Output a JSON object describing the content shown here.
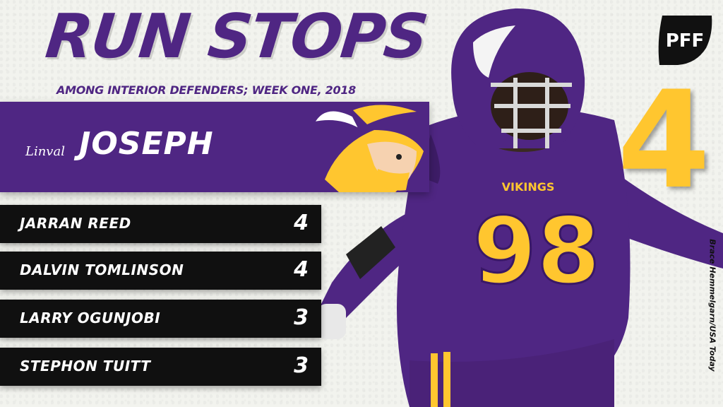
{
  "graphic": {
    "title": "RUN STOPS",
    "subtitle": "AMONG INTERIOR DEFENDERS; WEEK ONE, 2018"
  },
  "featured_player": {
    "first_name": "Linval",
    "last_name": "JOSEPH",
    "value": "4",
    "team_logo_icon": "vikings-logo-icon",
    "jersey_team": "VIKINGS",
    "jersey_number": "98"
  },
  "rankings": [
    {
      "name": "JARRAN REED",
      "value": "4"
    },
    {
      "name": "DALVIN TOMLINSON",
      "value": "4"
    },
    {
      "name": "LARRY OGUNJOBI",
      "value": "3"
    },
    {
      "name": "STEPHON TUITT",
      "value": "3"
    }
  ],
  "branding": {
    "logo_text": "PFF"
  },
  "photo_credit": "Brace Hemmelgarn/USA Today",
  "colors": {
    "purple": "#4f2683",
    "gold": "#ffc62f",
    "row_black": "#101010",
    "background": "#f2f3ee"
  }
}
